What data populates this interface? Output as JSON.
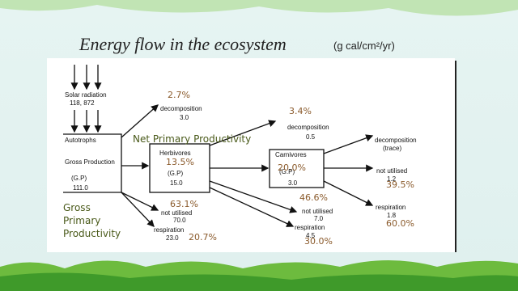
{
  "title": "Energy flow in the ecosystem",
  "unit": "(g cal/cm²/yr)",
  "diagram": {
    "solar": {
      "label": "Solar radiation",
      "value": "118, 872"
    },
    "autotrophs": {
      "label": "Autotrophs",
      "sublabel": "Gross Production",
      "gp": "(G.P)",
      "value": "111.0"
    },
    "herbivores": {
      "label": "Herbivores",
      "gp": "(G.P)",
      "value": "15.0"
    },
    "carnivores": {
      "label": "Carnivores",
      "gp": "(G.P)",
      "value": "3.0"
    },
    "flows": [
      {
        "label": "decomposition",
        "value": "3.0"
      },
      {
        "label": "not utilised",
        "value": "70.0"
      },
      {
        "label": "respiration",
        "value": "23.0"
      },
      {
        "label": "decomposition",
        "value": "0.5"
      },
      {
        "label": "not utilised",
        "value": "7.0"
      },
      {
        "label": "respiration",
        "value": "4.5"
      },
      {
        "label": "decomposition",
        "value": "(trace)"
      },
      {
        "label": "not utilised",
        "value": "1.2"
      },
      {
        "label": "respiration",
        "value": "1.8"
      }
    ]
  },
  "annotations": {
    "net_primary_productivity": "Net Primary Productivity",
    "gross_primary_productivity": [
      "Gross",
      "Primary",
      "Productivity"
    ],
    "percentages": [
      "2.7%",
      "3.4%",
      "13.5%",
      "20.0%",
      "39.5%",
      "46.6%",
      "63.1%",
      "20.7%",
      "60.0%",
      "30.0%"
    ]
  }
}
